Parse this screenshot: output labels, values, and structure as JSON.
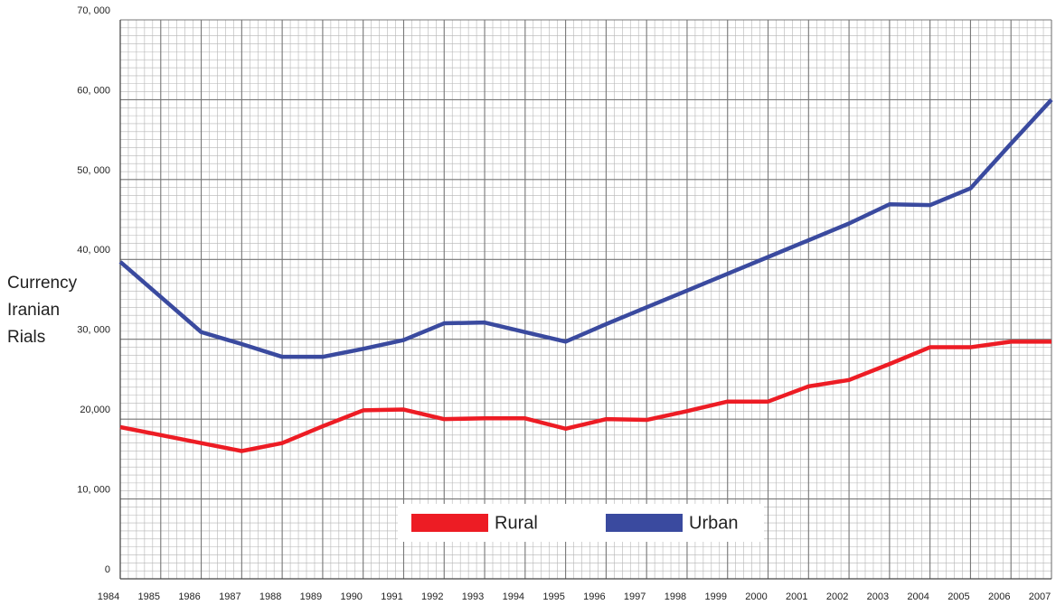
{
  "chart_data": {
    "type": "line",
    "ylabel": [
      "Currency",
      "Iranian",
      "Rials"
    ],
    "x": [
      1984,
      1985,
      1986,
      1987,
      1988,
      1989,
      1990,
      1991,
      1992,
      1993,
      1994,
      1995,
      1996,
      1997,
      1998,
      1999,
      2000,
      2001,
      2002,
      2003,
      2004,
      2005,
      2006,
      2007
    ],
    "xlim": [
      1984,
      2007
    ],
    "xticks": [
      1984,
      1985,
      1986,
      1987,
      1988,
      1989,
      1990,
      1991,
      1992,
      1993,
      1994,
      1995,
      1996,
      1997,
      1998,
      1999,
      2000,
      2001,
      2002,
      2003,
      2004,
      2005,
      2006,
      2007
    ],
    "ylim": [
      0,
      70000
    ],
    "yticks": [
      0,
      {
        "value": 10000,
        "label": "10, 000"
      },
      {
        "value": 20000,
        "label": "20,000"
      },
      {
        "value": 30000,
        "label": "30, 000"
      },
      {
        "value": 40000,
        "label": "40, 000"
      },
      {
        "value": 50000,
        "label": "50, 000"
      },
      {
        "value": 60000,
        "label": "60, 000"
      },
      {
        "value": 70000,
        "label": "70, 000"
      }
    ],
    "grid": true,
    "series": [
      {
        "name": "Rural",
        "color": "#ed1c24",
        "values": [
          19000,
          18000,
          17000,
          16000,
          17000,
          19100,
          21100,
          21200,
          20000,
          20100,
          20100,
          18800,
          20000,
          19900,
          21000,
          22200,
          22200,
          24100,
          24900,
          26900,
          29000,
          29000,
          29700,
          29700
        ]
      },
      {
        "name": "Urban",
        "color": "#3a4a9f",
        "values": [
          39700,
          35300,
          30900,
          29400,
          27800,
          27800,
          28800,
          29900,
          32000,
          32100,
          30900,
          29700,
          31900,
          34000,
          36100,
          38200,
          40300,
          42400,
          44500,
          46900,
          46800,
          48900,
          54500,
          60000
        ]
      }
    ]
  }
}
